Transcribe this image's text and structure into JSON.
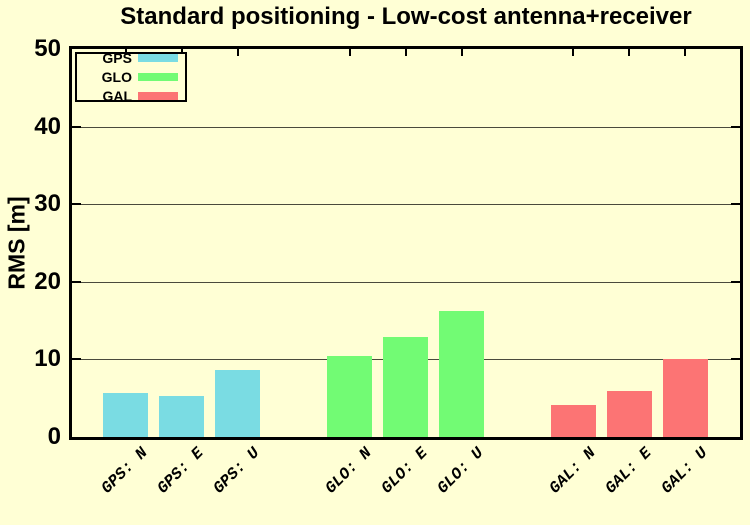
{
  "chart_data": {
    "type": "bar",
    "title": "Standard positioning - Low-cost antenna+receiver",
    "xlabel": "",
    "ylabel": "RMS [m]",
    "ylim": [
      0,
      50
    ],
    "yticks": [
      0,
      10,
      20,
      30,
      40,
      50
    ],
    "grid": true,
    "legend_position": "top-left",
    "plot_background": "#FFFFD5",
    "categories": [
      "GPS: N",
      "GPS: E",
      "GPS: U",
      "GLO: N",
      "GLO: E",
      "GLO: U",
      "GAL: N",
      "GAL: E",
      "GAL: U"
    ],
    "values": [
      5.7,
      5.3,
      8.7,
      10.4,
      12.9,
      16.2,
      4.1,
      5.9,
      10.1
    ],
    "series": [
      {
        "name": "GPS",
        "color": "#7ADCE3",
        "bar_indices": [
          0,
          1,
          2
        ]
      },
      {
        "name": "GLO",
        "color": "#72FB74",
        "bar_indices": [
          3,
          4,
          5
        ]
      },
      {
        "name": "GAL",
        "color": "#FC7474",
        "bar_indices": [
          6,
          7,
          8
        ]
      }
    ]
  }
}
